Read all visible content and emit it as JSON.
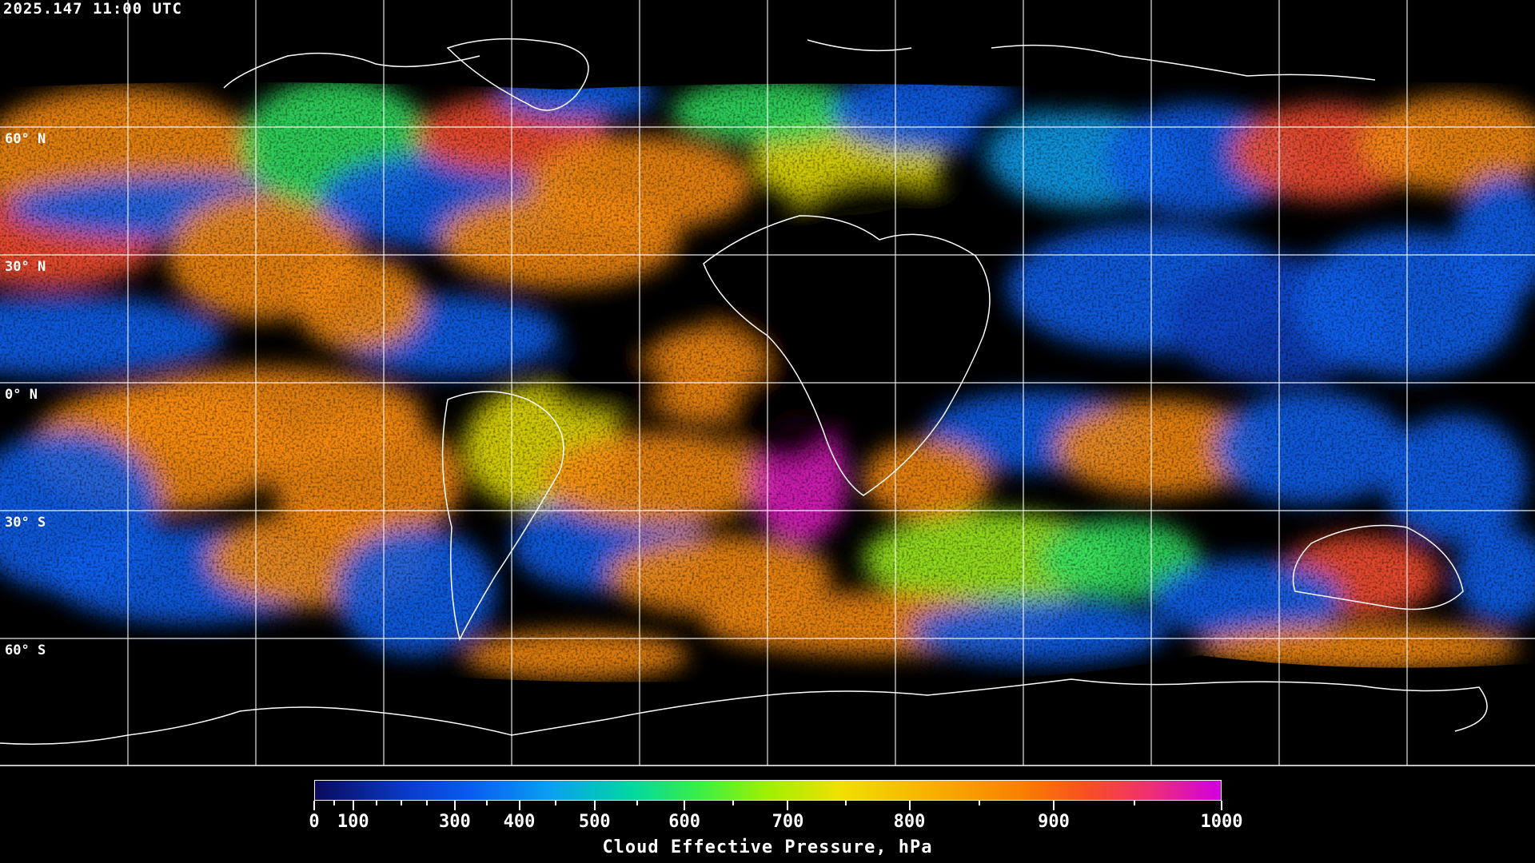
{
  "timestamp": "2025.147 11:00 UTC",
  "latitude_labels": [
    "60° N",
    "30° N",
    "0° N",
    "30° S",
    "60° S"
  ],
  "colorbar": {
    "title": "Cloud Effective Pressure, hPa",
    "range": [
      0,
      1000
    ],
    "labels": [
      "0",
      "100",
      "300",
      "400",
      "500",
      "600",
      "700",
      "800",
      "900",
      "1000"
    ],
    "colormap": [
      "#0a0a5a",
      "#0a5af0",
      "#0aa0f0",
      "#00d8a0",
      "#40f040",
      "#a0f000",
      "#f0e000",
      "#f8b000",
      "#f88000",
      "#f85020",
      "#f03070",
      "#d000e0"
    ]
  },
  "map": {
    "projection": "equirectangular",
    "gridline_spacing_deg": 30,
    "background": "#000000",
    "coastline_color": "#ffffff"
  }
}
